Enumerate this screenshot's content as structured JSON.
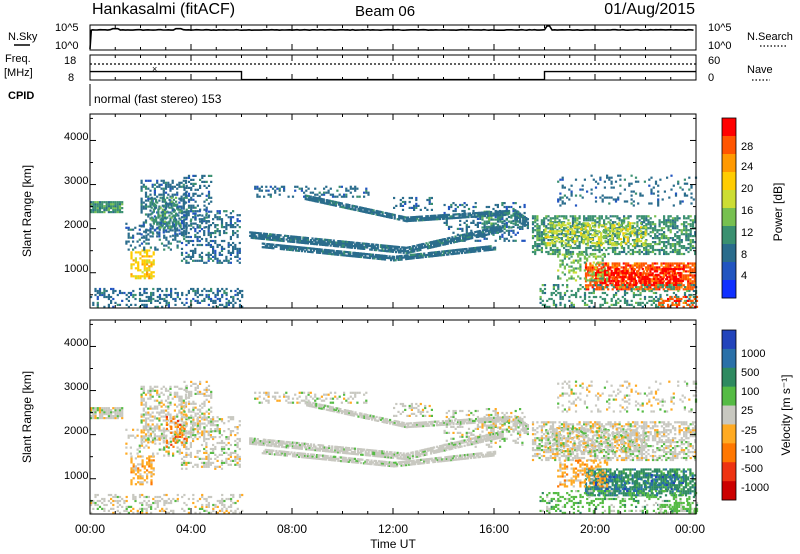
{
  "header": {
    "station": "Hankasalmi (fitACF)",
    "beam": "Beam 06",
    "date": "01/Aug/2015"
  },
  "top_panels": {
    "nsky_label": "N.Sky",
    "nsearch_label": "N.Search",
    "noise_ticks": [
      "10^5",
      "10^0"
    ],
    "freq_label_line1": "Freq.",
    "freq_label_line2": "[MHz]",
    "freq_ticks": [
      "18",
      "8"
    ],
    "nave_ticks": [
      "60",
      "0"
    ],
    "nave_label": "Nave",
    "cpid_label": "CPID",
    "cpid_text": "normal (fast stereo) 153"
  },
  "axes": {
    "ylabel": "Slant Range [km]",
    "yticks": [
      "4000",
      "3000",
      "2000",
      "1000"
    ],
    "xticks": [
      "00:00",
      "04:00",
      "08:00",
      "12:00",
      "16:00",
      "20:00",
      "00:00"
    ],
    "xlabel": "Time UT"
  },
  "colorbars": {
    "power": {
      "label": "Power [dB]",
      "ticks": [
        "28",
        "24",
        "20",
        "16",
        "12",
        "8",
        "4"
      ],
      "colors": [
        "#ff0000",
        "#ff5500",
        "#ff9900",
        "#ffcc00",
        "#ccdd33",
        "#77c050",
        "#3a9070",
        "#2a6c8c",
        "#2255c0",
        "#1030ff"
      ]
    },
    "velocity": {
      "label": "Velocity [m s⁻¹]",
      "ticks": [
        "1000",
        "500",
        "100",
        "25",
        "-25",
        "-100",
        "-500",
        "-1000"
      ],
      "colors": [
        "#2244bb",
        "#2a70a8",
        "#2e8a60",
        "#55bb44",
        "#c8c8c0",
        "#ffaa22",
        "#ff7700",
        "#ee3311",
        "#cc0000"
      ]
    }
  },
  "chart_data": [
    {
      "type": "line",
      "title": "N.Sky / N.Search",
      "x_range_hours": [
        0,
        24
      ],
      "y_scale": "log",
      "ylim": [
        1,
        100000
      ],
      "notes": "noise level roughly constant ~10^4 with small spikes near 01:00, 03:30 and 18:00"
    },
    {
      "type": "line",
      "title": "Freq. [MHz] / Nave",
      "freq_ylim": [
        8,
        18
      ],
      "nave_ylim": [
        0,
        60
      ],
      "nave_dotted": [
        {
          "x": 0,
          "y": 40
        },
        {
          "x": 24,
          "y": 40
        }
      ],
      "freq_step": [
        {
          "x": 0,
          "y": 11.5
        },
        {
          "x": 6,
          "y": 11.5
        },
        {
          "x": 6,
          "y": 8.2
        },
        {
          "x": 18,
          "y": 8.2
        },
        {
          "x": 18,
          "y": 11.5
        },
        {
          "x": 24,
          "y": 11.5
        }
      ]
    },
    {
      "type": "heatmap",
      "title": "Power [dB]",
      "x_range_hours": [
        0,
        24
      ],
      "ylim": [
        200,
        4600
      ],
      "scatter_regions": [
        {
          "t0": 0.0,
          "t1": 1.3,
          "r0": 2350,
          "r1": 2600,
          "cls": 6,
          "density": 0.9
        },
        {
          "t0": 0.0,
          "t1": 6.0,
          "r0": 200,
          "r1": 650,
          "cls": 7,
          "density": 0.35
        },
        {
          "t0": 1.6,
          "t1": 2.5,
          "r0": 850,
          "r1": 1500,
          "cls": 3,
          "density": 0.55
        },
        {
          "t0": 1.4,
          "t1": 3.6,
          "r0": 1500,
          "r1": 2100,
          "cls": 7,
          "density": 0.25
        },
        {
          "t0": 2.0,
          "t1": 3.8,
          "r0": 1800,
          "r1": 3100,
          "cls": 7,
          "density": 0.45
        },
        {
          "t0": 2.4,
          "t1": 3.6,
          "r0": 2000,
          "r1": 2700,
          "cls": 6,
          "density": 0.45
        },
        {
          "t0": 3.6,
          "t1": 5.9,
          "r0": 1200,
          "r1": 2400,
          "cls": 7,
          "density": 0.35
        },
        {
          "t0": 3.7,
          "t1": 4.8,
          "r0": 2000,
          "r1": 3200,
          "cls": 7,
          "density": 0.35
        },
        {
          "t0": 6.5,
          "t1": 11.0,
          "r0": 2700,
          "r1": 2950,
          "cls": 7,
          "density": 0.3
        },
        {
          "t0": 12.0,
          "t1": 13.5,
          "r0": 2400,
          "r1": 2700,
          "cls": 7,
          "density": 0.3
        },
        {
          "t0": 14.0,
          "t1": 17.2,
          "r0": 1700,
          "r1": 2600,
          "cls": 7,
          "density": 0.25
        },
        {
          "t0": 15.5,
          "t1": 17.0,
          "r0": 2000,
          "r1": 2400,
          "cls": 6,
          "density": 0.5
        },
        {
          "t0": 17.5,
          "t1": 24.0,
          "r0": 1400,
          "r1": 2300,
          "cls": 6,
          "density": 0.55
        },
        {
          "t0": 18.0,
          "t1": 22.0,
          "r0": 1600,
          "r1": 2100,
          "cls": 4,
          "density": 0.45
        },
        {
          "t0": 18.5,
          "t1": 24.0,
          "r0": 2500,
          "r1": 3200,
          "cls": 7,
          "density": 0.15
        },
        {
          "t0": 19.6,
          "t1": 24.0,
          "r0": 600,
          "r1": 1200,
          "cls": 1,
          "density": 0.75
        },
        {
          "t0": 20.0,
          "t1": 23.5,
          "r0": 700,
          "r1": 1100,
          "cls": 0,
          "density": 0.5
        },
        {
          "t0": 18.5,
          "t1": 20.5,
          "r0": 800,
          "r1": 1400,
          "cls": 5,
          "density": 0.4
        },
        {
          "t0": 17.8,
          "t1": 24.0,
          "r0": 200,
          "r1": 700,
          "cls": 6,
          "density": 0.3
        },
        {
          "t0": 22.5,
          "t1": 24.0,
          "r0": 200,
          "r1": 450,
          "cls": 1,
          "density": 0.4
        }
      ],
      "line_features": [
        {
          "x0": 6.3,
          "r0": 1850,
          "x1": 12.5,
          "r1": 1500,
          "w": 160,
          "cls": 7
        },
        {
          "x0": 12.5,
          "r0": 1500,
          "x1": 16.3,
          "r1": 2000,
          "w": 160,
          "cls": 7
        },
        {
          "x0": 6.8,
          "r0": 1600,
          "x1": 12.0,
          "r1": 1300,
          "w": 90,
          "cls": 7
        },
        {
          "x0": 12.0,
          "r0": 1300,
          "x1": 16.0,
          "r1": 1550,
          "w": 90,
          "cls": 7
        },
        {
          "x0": 8.5,
          "r0": 2700,
          "x1": 12.5,
          "r1": 2200,
          "w": 110,
          "cls": 7
        },
        {
          "x0": 12.5,
          "r0": 2200,
          "x1": 16.5,
          "r1": 2350,
          "w": 110,
          "cls": 7
        },
        {
          "x0": 16.8,
          "r0": 2300,
          "x1": 17.3,
          "r1": 2100,
          "w": 220,
          "cls": 7
        }
      ]
    },
    {
      "type": "heatmap",
      "title": "Velocity [m s-1]",
      "x_range_hours": [
        0,
        24
      ],
      "ylim": [
        200,
        4600
      ],
      "scatter_regions": [
        {
          "t0": 0.0,
          "t1": 1.3,
          "r0": 2350,
          "r1": 2600,
          "cls": 4,
          "density": 0.9
        },
        {
          "t0": 0.0,
          "t1": 6.0,
          "r0": 200,
          "r1": 650,
          "cls": 4,
          "density": 0.35
        },
        {
          "t0": 1.6,
          "t1": 2.5,
          "r0": 850,
          "r1": 1500,
          "cls": 5,
          "density": 0.55
        },
        {
          "t0": 1.4,
          "t1": 3.6,
          "r0": 1500,
          "r1": 2100,
          "cls": 4,
          "density": 0.25
        },
        {
          "t0": 2.0,
          "t1": 3.8,
          "r0": 1800,
          "r1": 3100,
          "cls": 4,
          "density": 0.45
        },
        {
          "t0": 3.0,
          "t1": 3.8,
          "r0": 1700,
          "r1": 2400,
          "cls": 6,
          "density": 0.3
        },
        {
          "t0": 3.6,
          "t1": 5.9,
          "r0": 1200,
          "r1": 2400,
          "cls": 4,
          "density": 0.35
        },
        {
          "t0": 3.7,
          "t1": 4.8,
          "r0": 2000,
          "r1": 3200,
          "cls": 4,
          "density": 0.35
        },
        {
          "t0": 6.5,
          "t1": 11.0,
          "r0": 2700,
          "r1": 2950,
          "cls": 4,
          "density": 0.3
        },
        {
          "t0": 12.0,
          "t1": 13.5,
          "r0": 2400,
          "r1": 2700,
          "cls": 4,
          "density": 0.3
        },
        {
          "t0": 14.0,
          "t1": 17.2,
          "r0": 1700,
          "r1": 2600,
          "cls": 4,
          "density": 0.25
        },
        {
          "t0": 15.5,
          "t1": 17.0,
          "r0": 2000,
          "r1": 2400,
          "cls": 4,
          "density": 0.5
        },
        {
          "t0": 17.5,
          "t1": 24.0,
          "r0": 1400,
          "r1": 2300,
          "cls": 4,
          "density": 0.55
        },
        {
          "t0": 18.0,
          "t1": 22.0,
          "r0": 1600,
          "r1": 2100,
          "cls": 4,
          "density": 0.45
        },
        {
          "t0": 18.5,
          "t1": 24.0,
          "r0": 2500,
          "r1": 3200,
          "cls": 4,
          "density": 0.15
        },
        {
          "t0": 19.6,
          "t1": 24.0,
          "r0": 600,
          "r1": 1200,
          "cls": 2,
          "density": 0.75
        },
        {
          "t0": 20.0,
          "t1": 23.5,
          "r0": 700,
          "r1": 1100,
          "cls": 1,
          "density": 0.3
        },
        {
          "t0": 18.5,
          "t1": 20.5,
          "r0": 800,
          "r1": 1400,
          "cls": 5,
          "density": 0.4
        },
        {
          "t0": 17.8,
          "t1": 24.0,
          "r0": 200,
          "r1": 700,
          "cls": 3,
          "density": 0.3
        },
        {
          "t0": 22.5,
          "t1": 24.0,
          "r0": 200,
          "r1": 450,
          "cls": 3,
          "density": 0.4
        }
      ],
      "line_features": [
        {
          "x0": 6.3,
          "r0": 1850,
          "x1": 12.5,
          "r1": 1500,
          "w": 160,
          "cls": 4
        },
        {
          "x0": 12.5,
          "r0": 1500,
          "x1": 16.3,
          "r1": 2000,
          "w": 160,
          "cls": 4
        },
        {
          "x0": 6.8,
          "r0": 1600,
          "x1": 12.0,
          "r1": 1300,
          "w": 90,
          "cls": 4
        },
        {
          "x0": 12.0,
          "r0": 1300,
          "x1": 16.0,
          "r1": 1550,
          "w": 90,
          "cls": 4
        },
        {
          "x0": 8.5,
          "r0": 2700,
          "x1": 12.5,
          "r1": 2200,
          "w": 110,
          "cls": 4
        },
        {
          "x0": 12.5,
          "r0": 2200,
          "x1": 16.5,
          "r1": 2350,
          "w": 110,
          "cls": 4
        },
        {
          "x0": 16.8,
          "r0": 2300,
          "x1": 17.3,
          "r1": 2100,
          "w": 220,
          "cls": 4
        }
      ]
    }
  ]
}
